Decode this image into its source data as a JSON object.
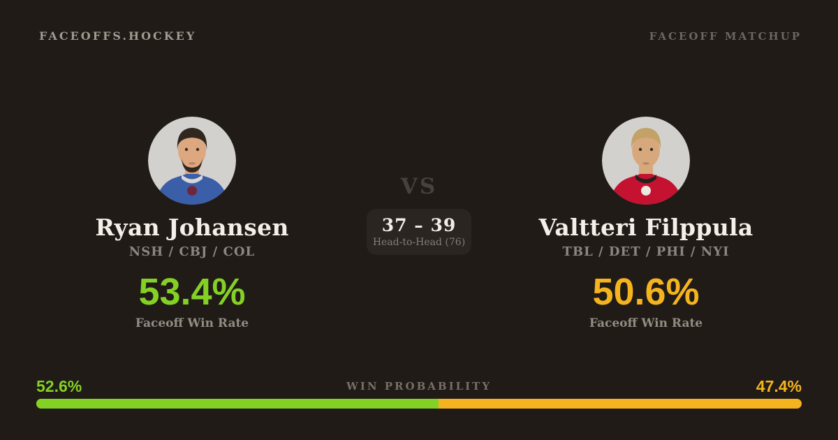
{
  "header": {
    "brand": "FACEOFFS.HOCKEY",
    "label": "FACEOFF MATCHUP"
  },
  "center": {
    "vs": "VS",
    "score": "37 – 39",
    "score_label": "Head-to-Head (76)"
  },
  "players": [
    {
      "name": "Ryan Johansen",
      "teams": "NSH / CBJ / COL",
      "win_rate": "53.4%",
      "win_rate_label": "Faceoff Win Rate",
      "accent": "#84d125",
      "avatar": {
        "background": "#d3d1ce",
        "skin": "#dda77f",
        "hair": "#30271f",
        "beard": "#30271f",
        "jersey": "#3b5ea8",
        "collar": "#d9d7d3",
        "logo": "#6f263d"
      }
    },
    {
      "name": "Valtteri Filppula",
      "teams": "TBL / DET / PHI / NYI",
      "win_rate": "50.6%",
      "win_rate_label": "Faceoff Win Rate",
      "accent": "#f5b41f",
      "avatar": {
        "background": "#d3d1ce",
        "skin": "#d8a87d",
        "hair": "#c2a267",
        "beard": "transparent",
        "jersey": "#c51230",
        "collar": "#23201e",
        "logo": "#ece7df"
      }
    }
  ],
  "win_probability": {
    "label": "WIN PROBABILITY",
    "left_label": "52.6%",
    "right_label": "47.4%",
    "left_value": 52.6,
    "right_value": 47.4,
    "left_color": "#84d125",
    "right_color": "#f5b41f"
  },
  "colors": {
    "background": "#201b17",
    "box": "#2a2521",
    "text_primary": "#f4f0e9",
    "text_muted": "#8d8680"
  }
}
